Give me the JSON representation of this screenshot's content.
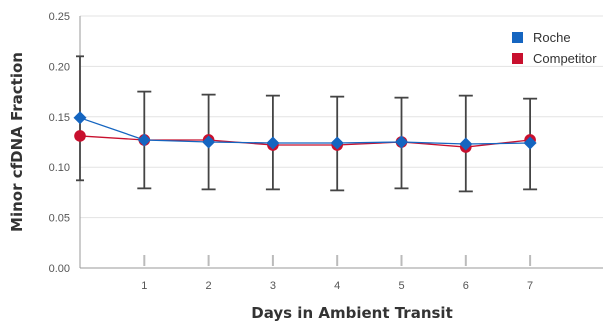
{
  "chart_data": {
    "type": "line",
    "xlabel": "Days in Ambient Transit",
    "ylabel": "Minor cfDNA Fraction",
    "ylim": [
      0,
      0.25
    ],
    "y_ticks": [
      "0.00",
      "0.05",
      "0.10",
      "0.15",
      "0.20",
      "0.25"
    ],
    "y_tick_values": [
      0,
      0.05,
      0.1,
      0.15,
      0.2,
      0.25
    ],
    "x_ticks": [
      "1",
      "2",
      "3",
      "4",
      "5",
      "6",
      "7"
    ],
    "x_tick_values": [
      1,
      2,
      3,
      4,
      5,
      6,
      7
    ],
    "grid": "horizontal",
    "legend_placement": "top-right",
    "x": [
      0,
      1,
      2,
      3,
      4,
      5,
      6,
      7
    ],
    "series": [
      {
        "name": "Roche",
        "color": "#1565c0",
        "marker": "diamond",
        "values": [
          0.149,
          0.127,
          0.125,
          0.124,
          0.124,
          0.125,
          0.123,
          0.124
        ]
      },
      {
        "name": "Competitor",
        "color": "#c8102e",
        "marker": "circle",
        "values": [
          0.131,
          0.127,
          0.127,
          0.122,
          0.122,
          0.125,
          0.12,
          0.127
        ]
      }
    ],
    "error_bars": {
      "color": "#444444",
      "x": [
        0,
        1,
        2,
        3,
        4,
        5,
        6,
        7
      ],
      "low": [
        0.087,
        0.079,
        0.078,
        0.078,
        0.077,
        0.079,
        0.076,
        0.078
      ],
      "high": [
        0.21,
        0.175,
        0.172,
        0.171,
        0.17,
        0.169,
        0.171,
        0.168
      ]
    }
  }
}
